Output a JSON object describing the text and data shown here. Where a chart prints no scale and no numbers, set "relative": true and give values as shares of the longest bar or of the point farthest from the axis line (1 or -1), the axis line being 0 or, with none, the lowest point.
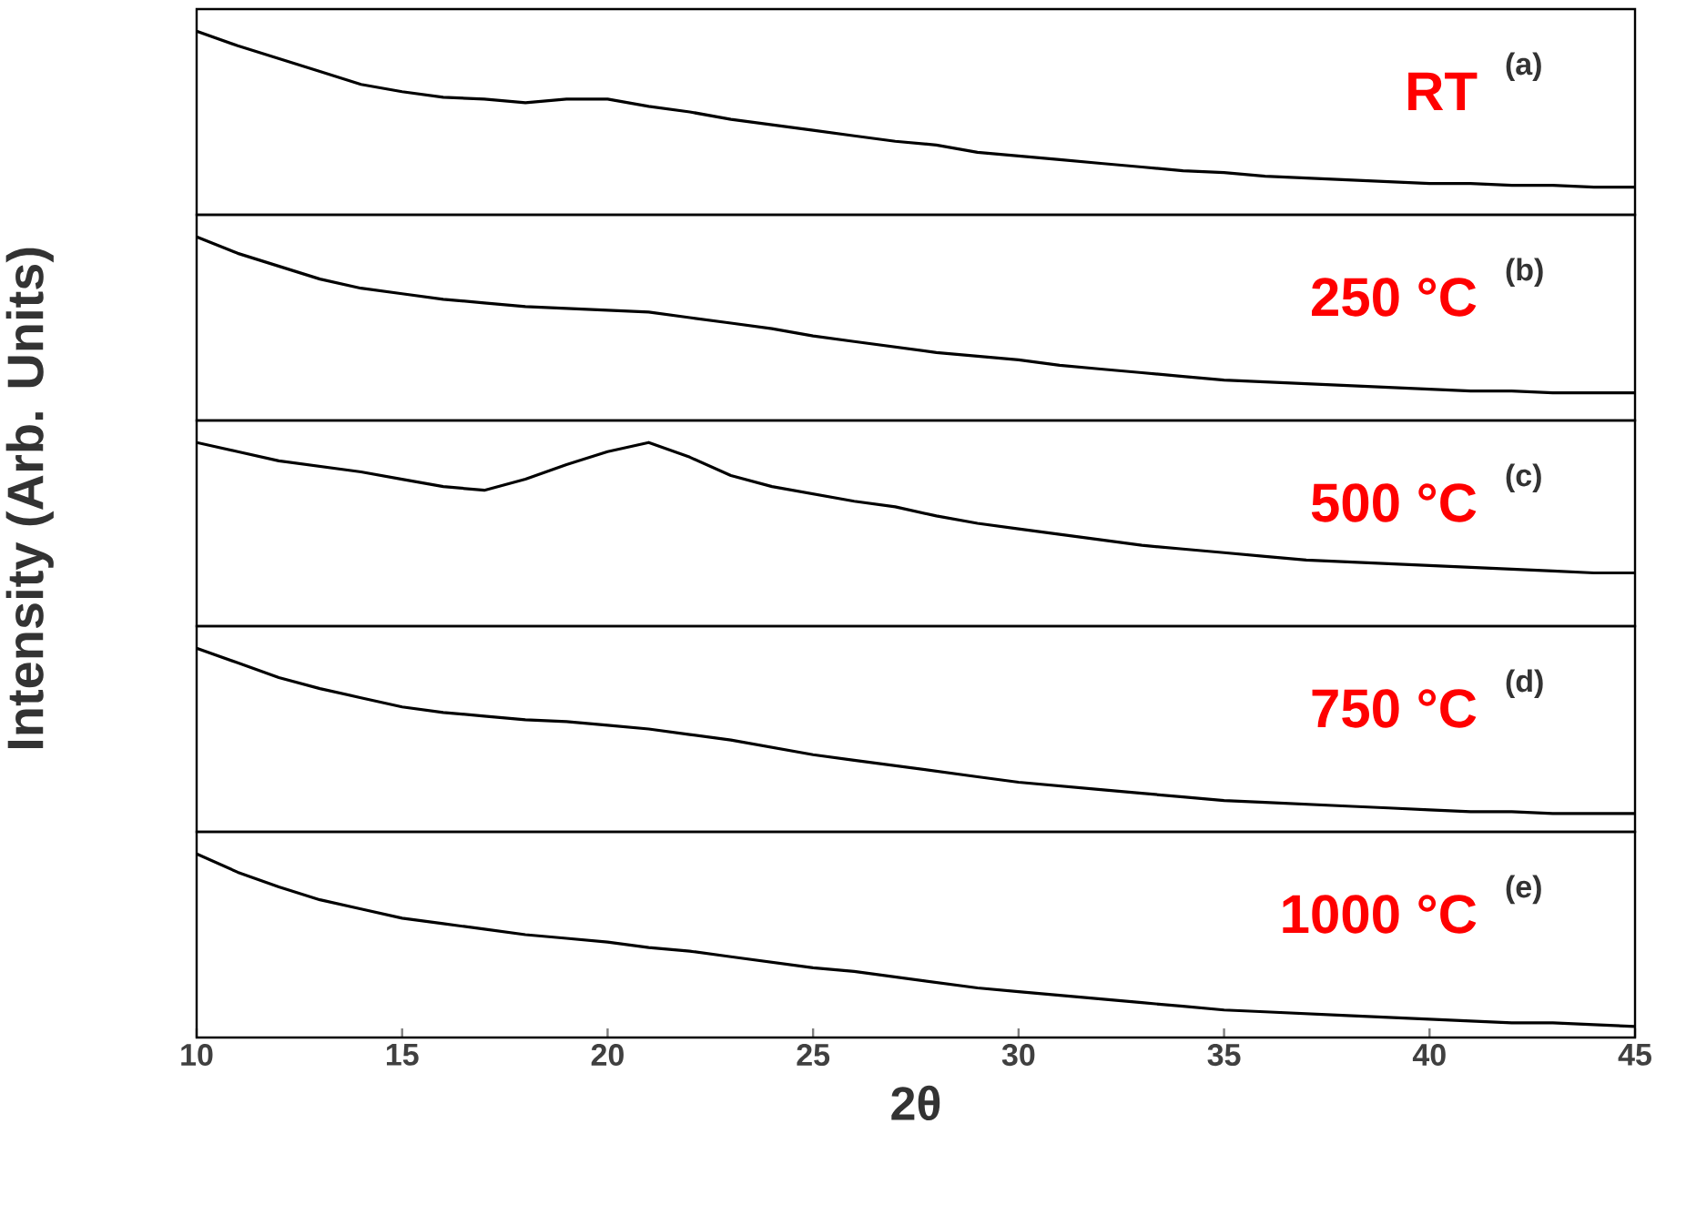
{
  "chart_data": [
    {
      "type": "line",
      "x": [
        10,
        11,
        12,
        13,
        14,
        15,
        16,
        17,
        18,
        19,
        20,
        21,
        22,
        23,
        24,
        25,
        26,
        27,
        28,
        29,
        30,
        31,
        32,
        33,
        34,
        35,
        36,
        37,
        38,
        39,
        40,
        41,
        42,
        43,
        44,
        45
      ],
      "values": [
        1,
        0.92,
        0.85,
        0.78,
        0.71,
        0.67,
        0.64,
        0.63,
        0.61,
        0.63,
        0.63,
        0.59,
        0.56,
        0.52,
        0.49,
        0.46,
        0.43,
        0.4,
        0.38,
        0.34,
        0.32,
        0.3,
        0.28,
        0.26,
        0.24,
        0.23,
        0.21,
        0.2,
        0.19,
        0.18,
        0.17,
        0.17,
        0.16,
        0.16,
        0.15,
        0.15
      ],
      "color": "#000000",
      "relative": true,
      "xlim": [
        10,
        45
      ],
      "tick_labels": false,
      "annotations": [
        "RT",
        "(a)"
      ]
    },
    {
      "type": "line",
      "x": [
        10,
        11,
        12,
        13,
        14,
        15,
        16,
        17,
        18,
        19,
        20,
        21,
        22,
        23,
        24,
        25,
        26,
        27,
        28,
        29,
        30,
        31,
        32,
        33,
        34,
        35,
        36,
        37,
        38,
        39,
        40,
        41,
        42,
        43,
        44,
        45
      ],
      "values": [
        1,
        0.91,
        0.84,
        0.77,
        0.72,
        0.69,
        0.66,
        0.64,
        0.62,
        0.61,
        0.6,
        0.59,
        0.56,
        0.53,
        0.5,
        0.46,
        0.43,
        0.4,
        0.37,
        0.35,
        0.33,
        0.3,
        0.28,
        0.26,
        0.24,
        0.22,
        0.21,
        0.2,
        0.19,
        0.18,
        0.17,
        0.16,
        0.16,
        0.15,
        0.15,
        0.15
      ],
      "color": "#000000",
      "relative": true,
      "xlim": [
        10,
        45
      ],
      "tick_labels": false,
      "annotations": [
        "250 °C",
        "(b)"
      ]
    },
    {
      "type": "line",
      "x": [
        10,
        11,
        12,
        13,
        14,
        15,
        16,
        17,
        18,
        19,
        20,
        21,
        22,
        23,
        24,
        25,
        26,
        27,
        28,
        29,
        30,
        31,
        32,
        33,
        34,
        35,
        36,
        37,
        38,
        39,
        40,
        41,
        42,
        43,
        44,
        45
      ],
      "values": [
        1,
        0.95,
        0.9,
        0.87,
        0.84,
        0.8,
        0.76,
        0.74,
        0.8,
        0.88,
        0.95,
        1,
        0.92,
        0.82,
        0.76,
        0.72,
        0.68,
        0.65,
        0.6,
        0.56,
        0.53,
        0.5,
        0.47,
        0.44,
        0.42,
        0.4,
        0.38,
        0.36,
        0.35,
        0.34,
        0.33,
        0.32,
        0.31,
        0.3,
        0.29,
        0.29
      ],
      "color": "#000000",
      "relative": true,
      "xlim": [
        10,
        45
      ],
      "tick_labels": false,
      "ylabel": "Intensity (Arb. Units)",
      "annotations": [
        "500 °C",
        "(c)"
      ]
    },
    {
      "type": "line",
      "x": [
        10,
        11,
        12,
        13,
        14,
        15,
        16,
        17,
        18,
        19,
        20,
        21,
        22,
        23,
        24,
        25,
        26,
        27,
        28,
        29,
        30,
        31,
        32,
        33,
        34,
        35,
        36,
        37,
        38,
        39,
        40,
        41,
        42,
        43,
        44,
        45
      ],
      "values": [
        1,
        0.92,
        0.84,
        0.78,
        0.73,
        0.68,
        0.65,
        0.63,
        0.61,
        0.6,
        0.58,
        0.56,
        0.53,
        0.5,
        0.46,
        0.42,
        0.39,
        0.36,
        0.33,
        0.3,
        0.27,
        0.25,
        0.23,
        0.21,
        0.19,
        0.17,
        0.16,
        0.15,
        0.14,
        0.13,
        0.12,
        0.11,
        0.11,
        0.1,
        0.1,
        0.1
      ],
      "color": "#000000",
      "relative": true,
      "xlim": [
        10,
        45
      ],
      "tick_labels": false,
      "annotations": [
        "750 °C",
        "(d)"
      ]
    },
    {
      "type": "line",
      "x": [
        10,
        11,
        12,
        13,
        14,
        15,
        16,
        17,
        18,
        19,
        20,
        21,
        22,
        23,
        24,
        25,
        26,
        27,
        28,
        29,
        30,
        31,
        32,
        33,
        34,
        35,
        36,
        37,
        38,
        39,
        40,
        41,
        42,
        43,
        44,
        45
      ],
      "values": [
        1,
        0.9,
        0.82,
        0.75,
        0.7,
        0.65,
        0.62,
        0.59,
        0.56,
        0.54,
        0.52,
        0.49,
        0.47,
        0.44,
        0.41,
        0.38,
        0.36,
        0.33,
        0.3,
        0.27,
        0.25,
        0.23,
        0.21,
        0.19,
        0.17,
        0.15,
        0.14,
        0.13,
        0.12,
        0.11,
        0.1,
        0.09,
        0.08,
        0.08,
        0.07,
        0.06
      ],
      "color": "#000000",
      "relative": true,
      "xlim": [
        10,
        45
      ],
      "xticks": [
        10,
        15,
        20,
        25,
        30,
        35,
        40,
        45
      ],
      "tick_labels": "x",
      "xlabel": "2θ",
      "annotations": [
        "1000 °C",
        "(e)"
      ]
    }
  ]
}
